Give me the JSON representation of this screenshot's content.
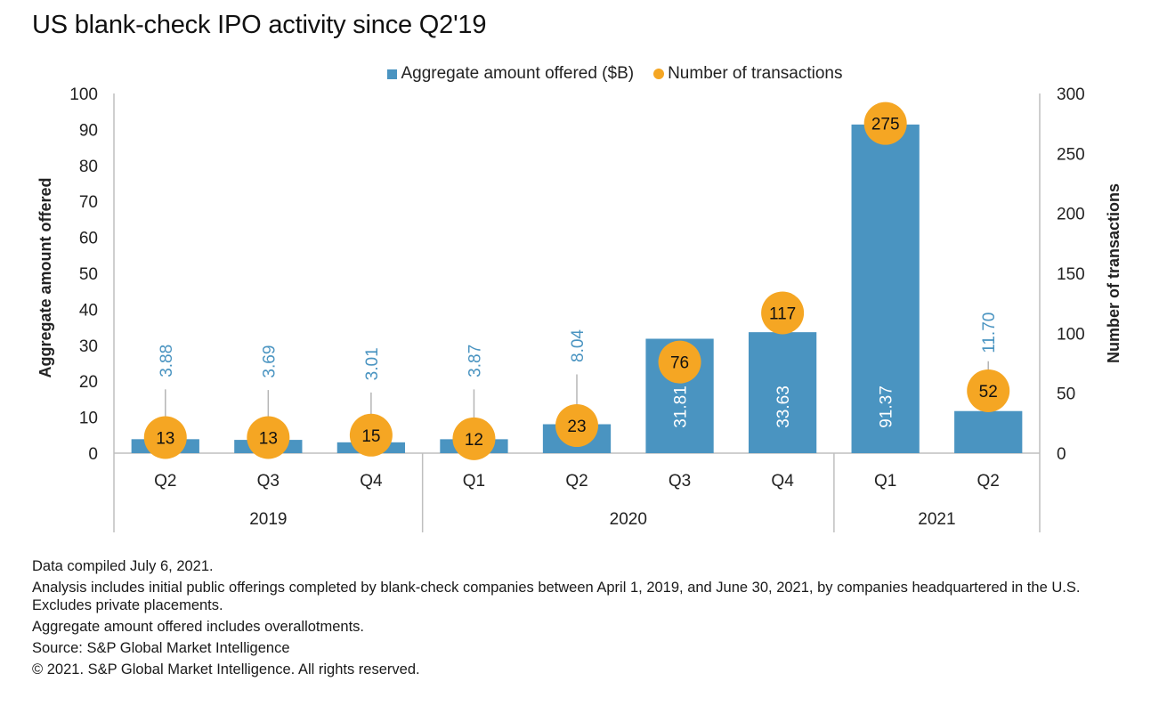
{
  "title": "US blank-check IPO activity since Q2'19",
  "legend": {
    "bar_label": "Aggregate amount offered ($B)",
    "dot_label": "Number of transactions"
  },
  "colors": {
    "bar": "#4a94c1",
    "dot": "#f5a623",
    "bar_label_outside": "#4a94c1",
    "bar_label_inside": "#ffffff",
    "axis": "#bfbfbf"
  },
  "chart_data": {
    "type": "bar",
    "title": "US blank-check IPO activity since Q2'19",
    "categories": [
      "Q2",
      "Q3",
      "Q4",
      "Q1",
      "Q2",
      "Q3",
      "Q4",
      "Q1",
      "Q2"
    ],
    "category_groups": [
      {
        "label": "2019",
        "count": 3
      },
      {
        "label": "2020",
        "count": 4
      },
      {
        "label": "2021",
        "count": 2
      }
    ],
    "series": [
      {
        "name": "Aggregate amount offered ($B)",
        "type": "bar",
        "axis": "left",
        "values": [
          3.88,
          3.69,
          3.01,
          3.87,
          8.04,
          31.81,
          33.63,
          91.37,
          11.7
        ],
        "labels": [
          "3.88",
          "3.69",
          "3.01",
          "3.87",
          "8.04",
          "31.81",
          "33.63",
          "91.37",
          "11.70"
        ],
        "label_inside": [
          false,
          false,
          false,
          false,
          false,
          true,
          true,
          true,
          false
        ]
      },
      {
        "name": "Number of transactions",
        "type": "scatter",
        "axis": "right",
        "values": [
          13,
          13,
          15,
          12,
          23,
          76,
          117,
          275,
          52
        ],
        "labels": [
          "13",
          "13",
          "15",
          "12",
          "23",
          "76",
          "117",
          "275",
          "52"
        ]
      }
    ],
    "ylabel": "Aggregate amount offered",
    "ylim": [
      0,
      100
    ],
    "yticks": [
      0,
      10,
      20,
      30,
      40,
      50,
      60,
      70,
      80,
      90,
      100
    ],
    "y2label": "Number of transactions",
    "y2lim": [
      0,
      300
    ],
    "y2ticks": [
      0,
      50,
      100,
      150,
      200,
      250,
      300
    ],
    "grid": false,
    "legend_position": "top-center"
  },
  "notes": [
    "Data compiled July 6, 2021.",
    "Analysis includes initial public offerings completed by blank-check companies between April 1, 2019, and June 30, 2021, by companies headquartered in the U.S. Excludes private placements.",
    "Aggregate amount offered includes overallotments.",
    "Source: S&P Global Market Intelligence",
    "© 2021. S&P Global Market Intelligence. All rights reserved."
  ]
}
